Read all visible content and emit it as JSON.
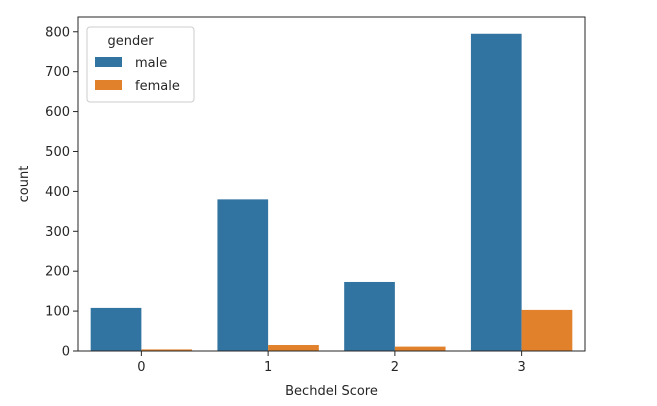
{
  "chart_data": {
    "type": "bar",
    "categories": [
      "0",
      "1",
      "2",
      "3"
    ],
    "series": [
      {
        "name": "male",
        "values": [
          108,
          380,
          173,
          795
        ],
        "color": "#3274a1"
      },
      {
        "name": "female",
        "values": [
          4,
          15,
          11,
          103
        ],
        "color": "#e1812c"
      }
    ],
    "title": "",
    "xlabel": "Bechdel Score",
    "ylabel": "count",
    "ylim": [
      0,
      837
    ],
    "yticks": [
      0,
      100,
      200,
      300,
      400,
      500,
      600,
      700,
      800
    ],
    "grid": false,
    "legend": {
      "title": "gender",
      "placement": "top-left"
    }
  }
}
